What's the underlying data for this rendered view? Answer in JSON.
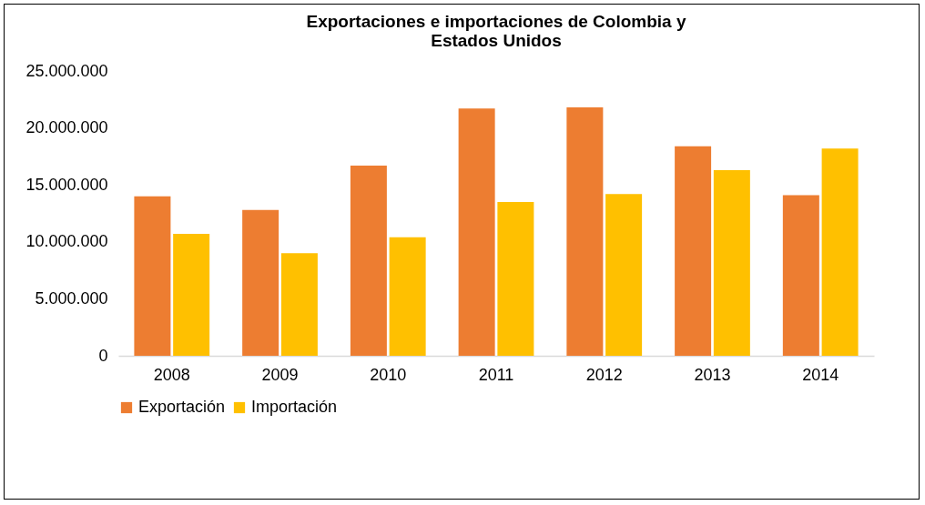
{
  "chart_data": {
    "type": "bar",
    "title": [
      "Exportaciones e importaciones de Colombia y",
      "Estados Unidos"
    ],
    "categories": [
      "2008",
      "2009",
      "2010",
      "2011",
      "2012",
      "2013",
      "2014"
    ],
    "series": [
      {
        "name": "Exportación",
        "color": "#ed7d31",
        "values": [
          14000000,
          12800000,
          16700000,
          21700000,
          21800000,
          18400000,
          14100000
        ]
      },
      {
        "name": "Importación",
        "color": "#ffc000",
        "values": [
          10700000,
          9000000,
          10400000,
          13500000,
          14200000,
          16300000,
          18200000
        ]
      }
    ],
    "ylim": [
      0,
      25000000
    ],
    "yticks": [
      {
        "value": 0,
        "label": "0"
      },
      {
        "value": 5000000,
        "label": "5.000.000"
      },
      {
        "value": 10000000,
        "label": "10.000.000"
      },
      {
        "value": 15000000,
        "label": "15.000.000"
      },
      {
        "value": 20000000,
        "label": "20.000.000"
      },
      {
        "value": 25000000,
        "label": "25.000.000"
      }
    ],
    "grid": false,
    "legend": "bottom"
  }
}
